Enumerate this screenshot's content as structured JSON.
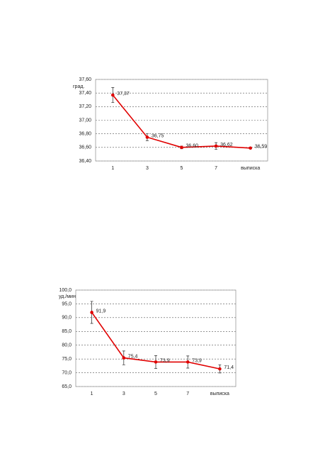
{
  "chart_data": [
    {
      "type": "line",
      "y_label": "град.",
      "categories": [
        "1",
        "3",
        "5",
        "7",
        "выписка"
      ],
      "series": [
        {
          "color": "#e00000",
          "values": [
            37.37,
            36.75,
            36.6,
            36.62,
            36.59
          ],
          "errors": [
            0.11,
            0.05,
            0.02,
            0.05,
            0.01
          ],
          "value_labels": [
            "37,37",
            "36,75",
            "36,60",
            "36,62",
            "36,59"
          ]
        }
      ],
      "ylim": [
        36.4,
        37.6
      ],
      "yticks": [
        {
          "value": 36.4,
          "label": "36,40"
        },
        {
          "value": 36.6,
          "label": "36,60"
        },
        {
          "value": 36.8,
          "label": "36,80"
        },
        {
          "value": 37.0,
          "label": "37,00"
        },
        {
          "value": 37.2,
          "label": "37,20"
        },
        {
          "value": 37.4,
          "label": "37,40"
        },
        {
          "value": 37.6,
          "label": "37,60"
        }
      ],
      "grid": true
    },
    {
      "type": "line",
      "y_label": "уд./мин",
      "categories": [
        "1",
        "3",
        "5",
        "7",
        "выписка"
      ],
      "series": [
        {
          "color": "#e00000",
          "values": [
            91.9,
            75.4,
            73.9,
            73.9,
            71.4
          ],
          "errors": [
            4,
            2.5,
            2.3,
            2.2,
            1.5
          ],
          "value_labels": [
            "91,9",
            "75,4",
            "73,9",
            "73,9",
            "71,4"
          ]
        }
      ],
      "ylim": [
        65,
        100
      ],
      "yticks": [
        {
          "value": 65,
          "label": "65,0"
        },
        {
          "value": 70,
          "label": "70,0"
        },
        {
          "value": 75,
          "label": "75,0"
        },
        {
          "value": 80,
          "label": "80,0"
        },
        {
          "value": 85,
          "label": "85,0"
        },
        {
          "value": 90,
          "label": "90,0"
        },
        {
          "value": 95,
          "label": "95,0"
        },
        {
          "value": 100,
          "label": "100,0"
        }
      ],
      "grid": true
    }
  ]
}
